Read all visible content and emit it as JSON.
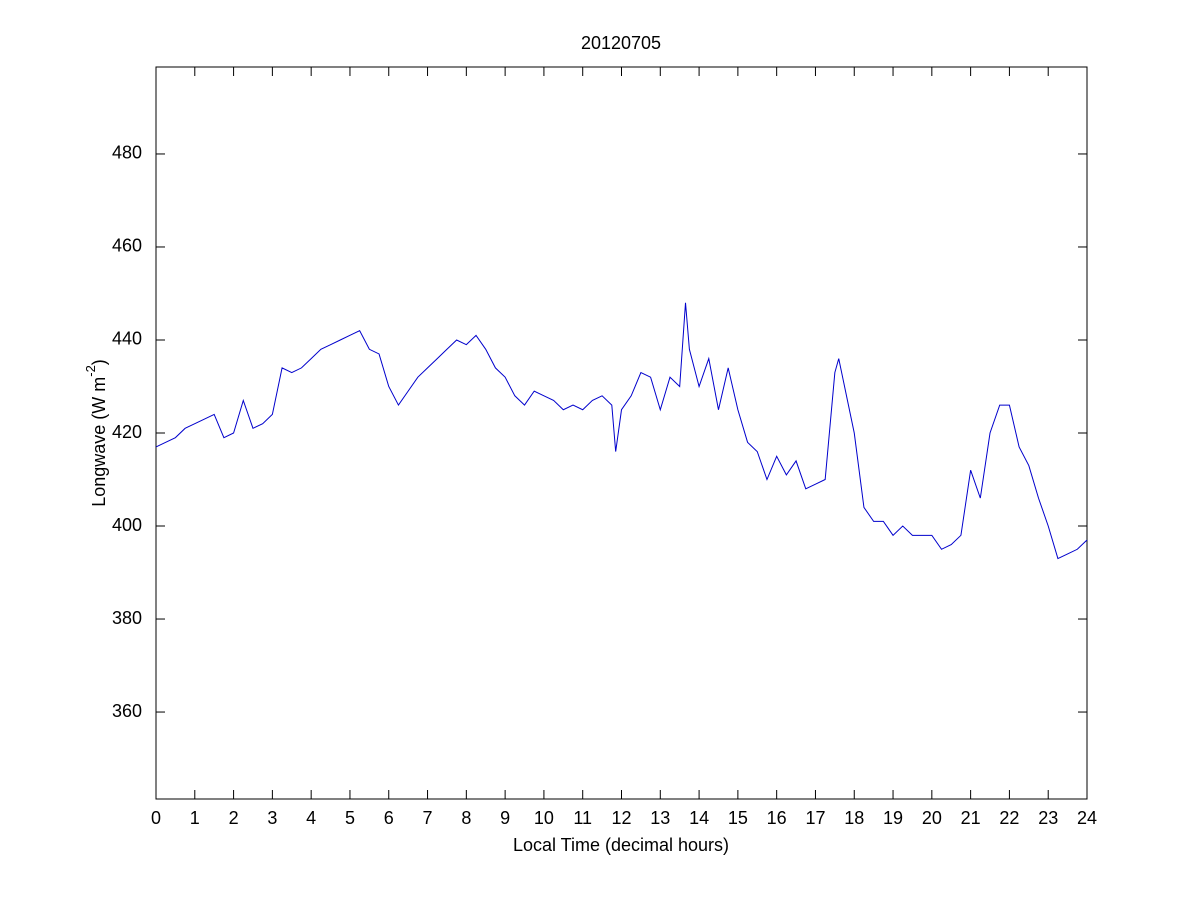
{
  "chart_data": {
    "type": "line",
    "title": "20120705",
    "x_label": "Local Time (decimal hours)",
    "y_label": "Longwave (W m",
    "y_label_sup": "-2",
    "y_label_end": ")",
    "x": [
      0,
      0.25,
      0.5,
      0.75,
      1,
      1.25,
      1.5,
      1.75,
      2,
      2.25,
      2.5,
      2.75,
      3,
      3.25,
      3.5,
      3.75,
      4,
      4.25,
      4.5,
      4.75,
      5,
      5.25,
      5.5,
      5.75,
      6,
      6.25,
      6.5,
      6.75,
      7,
      7.25,
      7.5,
      7.75,
      8,
      8.25,
      8.5,
      8.75,
      9,
      9.25,
      9.5,
      9.75,
      10,
      10.25,
      10.5,
      10.75,
      11,
      11.25,
      11.5,
      11.75,
      11.85,
      12,
      12.25,
      12.5,
      12.75,
      13,
      13.25,
      13.5,
      13.65,
      13.75,
      14,
      14.25,
      14.5,
      14.75,
      15,
      15.25,
      15.5,
      15.75,
      16,
      16.25,
      16.5,
      16.75,
      17,
      17.25,
      17.5,
      17.6,
      17.75,
      18,
      18.25,
      18.5,
      18.75,
      19,
      19.25,
      19.5,
      19.75,
      20,
      20.25,
      20.5,
      20.75,
      21,
      21.25,
      21.5,
      21.75,
      22,
      22.25,
      22.5,
      22.75,
      23,
      23.25,
      23.5,
      23.75,
      24
    ],
    "series": [
      {
        "name": "Longwave",
        "color": "#0000cc",
        "values": [
          417,
          418,
          419,
          421,
          422,
          423,
          424,
          419,
          420,
          427,
          421,
          422,
          424,
          434,
          433,
          434,
          436,
          438,
          439,
          440,
          441,
          442,
          438,
          437,
          430,
          426,
          429,
          432,
          434,
          436,
          438,
          440,
          439,
          441,
          438,
          434,
          432,
          428,
          426,
          429,
          428,
          427,
          425,
          426,
          425,
          427,
          428,
          426,
          416,
          425,
          428,
          433,
          432,
          425,
          432,
          430,
          448,
          438,
          430,
          436,
          425,
          434,
          425,
          418,
          416,
          410,
          415,
          411,
          414,
          408,
          409,
          410,
          433,
          436,
          430,
          420,
          404,
          401,
          401,
          398,
          400,
          398,
          398,
          398,
          395,
          396,
          398,
          412,
          406,
          420,
          426,
          426,
          417,
          413,
          406,
          400,
          393,
          394,
          395,
          397
        ]
      }
    ],
    "xlim": [
      0,
      24
    ],
    "ylim": [
      341.3,
      498.7
    ],
    "xticks": [
      0,
      1,
      2,
      3,
      4,
      5,
      6,
      7,
      8,
      9,
      10,
      11,
      12,
      13,
      14,
      15,
      16,
      17,
      18,
      19,
      20,
      21,
      22,
      23,
      24
    ],
    "yticks": [
      360,
      380,
      400,
      420,
      440,
      460,
      480
    ]
  }
}
